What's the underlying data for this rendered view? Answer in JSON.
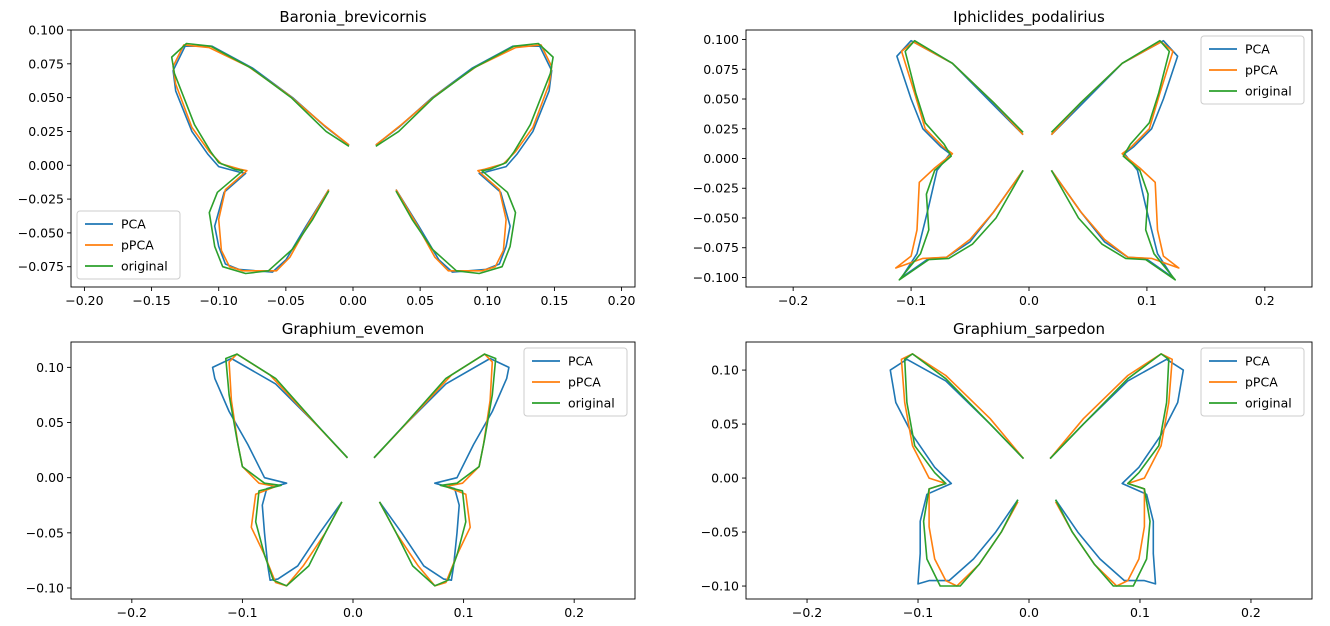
{
  "chart_data": [
    {
      "type": "line",
      "title": "Baronia_brevicornis",
      "xlim": [
        -0.21,
        0.21
      ],
      "ylim": [
        -0.09,
        0.1
      ],
      "xticks": [
        -0.2,
        -0.15,
        -0.1,
        -0.05,
        0.0,
        0.05,
        0.1,
        0.15,
        0.2
      ],
      "xtick_labels": [
        "−0.20",
        "−0.15",
        "−0.10",
        "−0.05",
        "0.00",
        "0.05",
        "0.10",
        "0.15",
        "0.20"
      ],
      "yticks": [
        -0.075,
        -0.05,
        -0.025,
        0.0,
        0.025,
        0.05,
        0.075,
        0.1
      ],
      "ytick_labels": [
        "−0.075",
        "−0.050",
        "−0.025",
        "0.000",
        "0.025",
        "0.050",
        "0.075",
        "0.100"
      ],
      "legend_position": "lower-left",
      "series": [
        {
          "name": "PCA",
          "color": "#1f77b4",
          "x": [
            -0.003,
            -0.02,
            -0.045,
            -0.075,
            -0.105,
            -0.125,
            -0.134,
            -0.132,
            -0.12,
            -0.108,
            -0.1,
            -0.085,
            -0.08,
            -0.096,
            -0.103,
            -0.1,
            -0.095,
            -0.085,
            -0.06,
            -0.05,
            -0.035,
            -0.018
          ],
          "y": [
            0.015,
            0.028,
            0.05,
            0.072,
            0.088,
            0.088,
            0.07,
            0.055,
            0.025,
            0.008,
            -0.001,
            -0.005,
            -0.006,
            -0.02,
            -0.045,
            -0.06,
            -0.073,
            -0.077,
            -0.079,
            -0.07,
            -0.045,
            -0.018
          ]
        },
        {
          "name": "pPCA",
          "color": "#ff7f0e",
          "x": [
            -0.003,
            -0.022,
            -0.048,
            -0.078,
            -0.107,
            -0.126,
            -0.134,
            -0.132,
            -0.12,
            -0.107,
            -0.098,
            -0.084,
            -0.079,
            -0.095,
            -0.1,
            -0.098,
            -0.092,
            -0.082,
            -0.057,
            -0.047,
            -0.033,
            -0.018
          ],
          "y": [
            0.015,
            0.03,
            0.052,
            0.073,
            0.087,
            0.089,
            0.073,
            0.06,
            0.028,
            0.01,
            0.001,
            -0.003,
            -0.004,
            -0.018,
            -0.04,
            -0.063,
            -0.075,
            -0.078,
            -0.078,
            -0.068,
            -0.043,
            -0.018
          ]
        },
        {
          "name": "original",
          "color": "#2ca02c",
          "x": [
            -0.003,
            -0.02,
            -0.046,
            -0.076,
            -0.106,
            -0.124,
            -0.135,
            -0.133,
            -0.118,
            -0.106,
            -0.1,
            -0.088,
            -0.082,
            -0.101,
            -0.107,
            -0.103,
            -0.097,
            -0.08,
            -0.063,
            -0.045,
            -0.03,
            -0.018
          ],
          "y": [
            0.014,
            0.025,
            0.05,
            0.072,
            0.088,
            0.09,
            0.08,
            0.068,
            0.03,
            0.01,
            0.002,
            -0.003,
            -0.004,
            -0.02,
            -0.035,
            -0.06,
            -0.075,
            -0.08,
            -0.078,
            -0.062,
            -0.04,
            -0.019
          ]
        }
      ]
    },
    {
      "type": "line",
      "title": "Iphiclides_podalirius",
      "xlim": [
        -0.24,
        0.24
      ],
      "ylim": [
        -0.108,
        0.108
      ],
      "xticks": [
        -0.2,
        -0.1,
        0.0,
        0.1,
        0.2
      ],
      "xtick_labels": [
        "−0.2",
        "−0.1",
        "0.0",
        "0.1",
        "0.2"
      ],
      "yticks": [
        -0.1,
        -0.075,
        -0.05,
        -0.025,
        0.0,
        0.025,
        0.05,
        0.075,
        0.1
      ],
      "ytick_labels": [
        "−0.100",
        "−0.075",
        "−0.050",
        "−0.025",
        "0.000",
        "0.025",
        "0.050",
        "0.075",
        "0.100"
      ],
      "legend_position": "upper-right",
      "series": [
        {
          "name": "PCA",
          "color": "#1f77b4",
          "x": [
            -0.005,
            -0.03,
            -0.065,
            -0.1,
            -0.112,
            -0.1,
            -0.09,
            -0.075,
            -0.067,
            -0.078,
            -0.085,
            -0.09,
            -0.095,
            -0.108,
            -0.085,
            -0.07,
            -0.05,
            -0.03,
            -0.005
          ],
          "y": [
            0.02,
            0.045,
            0.08,
            0.099,
            0.086,
            0.05,
            0.025,
            0.01,
            0.004,
            -0.01,
            -0.04,
            -0.06,
            -0.08,
            -0.1,
            -0.084,
            -0.083,
            -0.07,
            -0.045,
            -0.01
          ]
        },
        {
          "name": "pPCA",
          "color": "#ff7f0e",
          "x": [
            -0.005,
            -0.03,
            -0.065,
            -0.098,
            -0.108,
            -0.097,
            -0.088,
            -0.073,
            -0.065,
            -0.08,
            -0.093,
            -0.095,
            -0.1,
            -0.113,
            -0.09,
            -0.07,
            -0.05,
            -0.03,
            -0.005
          ],
          "y": [
            0.02,
            0.047,
            0.08,
            0.098,
            0.09,
            0.055,
            0.025,
            0.01,
            0.004,
            -0.008,
            -0.02,
            -0.06,
            -0.082,
            -0.092,
            -0.084,
            -0.083,
            -0.068,
            -0.045,
            -0.01
          ]
        },
        {
          "name": "original",
          "color": "#2ca02c",
          "x": [
            -0.005,
            -0.03,
            -0.065,
            -0.097,
            -0.105,
            -0.096,
            -0.088,
            -0.072,
            -0.066,
            -0.08,
            -0.087,
            -0.085,
            -0.092,
            -0.11,
            -0.085,
            -0.068,
            -0.048,
            -0.028,
            -0.005
          ],
          "y": [
            0.022,
            0.047,
            0.08,
            0.099,
            0.09,
            0.055,
            0.03,
            0.012,
            0.002,
            -0.01,
            -0.03,
            -0.06,
            -0.08,
            -0.102,
            -0.085,
            -0.084,
            -0.072,
            -0.05,
            -0.01
          ]
        }
      ]
    },
    {
      "type": "line",
      "title": "Graphium_evemon",
      "xlim": [
        -0.255,
        0.255
      ],
      "ylim": [
        -0.11,
        0.123
      ],
      "xticks": [
        -0.2,
        -0.1,
        0.0,
        0.1,
        0.2
      ],
      "xtick_labels": [
        "−0.2",
        "−0.1",
        "0.0",
        "0.1",
        "0.2"
      ],
      "yticks": [
        -0.1,
        -0.05,
        0.0,
        0.05,
        0.1
      ],
      "ytick_labels": [
        "−0.10",
        "−0.05",
        "0.00",
        "0.05",
        "0.10"
      ],
      "legend_position": "upper-right",
      "series": [
        {
          "name": "PCA",
          "color": "#1f77b4",
          "x": [
            -0.005,
            -0.03,
            -0.07,
            -0.11,
            -0.127,
            -0.125,
            -0.112,
            -0.095,
            -0.08,
            -0.06,
            -0.078,
            -0.082,
            -0.08,
            -0.077,
            -0.075,
            -0.068,
            -0.05,
            -0.03,
            -0.01
          ],
          "y": [
            0.018,
            0.045,
            0.085,
            0.108,
            0.1,
            0.09,
            0.06,
            0.03,
            0.0,
            -0.005,
            -0.01,
            -0.025,
            -0.05,
            -0.08,
            -0.093,
            -0.092,
            -0.08,
            -0.05,
            -0.022
          ]
        },
        {
          "name": "pPCA",
          "color": "#ff7f0e",
          "x": [
            -0.005,
            -0.035,
            -0.075,
            -0.105,
            -0.112,
            -0.11,
            -0.104,
            -0.1,
            -0.085,
            -0.07,
            -0.088,
            -0.092,
            -0.08,
            -0.07,
            -0.06,
            -0.045,
            -0.025,
            -0.01
          ],
          "y": [
            0.018,
            0.05,
            0.093,
            0.112,
            0.105,
            0.07,
            0.03,
            0.01,
            -0.005,
            -0.008,
            -0.015,
            -0.045,
            -0.07,
            -0.095,
            -0.098,
            -0.08,
            -0.05,
            -0.022
          ]
        },
        {
          "name": "original",
          "color": "#2ca02c",
          "x": [
            -0.005,
            -0.03,
            -0.07,
            -0.105,
            -0.115,
            -0.112,
            -0.105,
            -0.1,
            -0.08,
            -0.065,
            -0.085,
            -0.088,
            -0.08,
            -0.072,
            -0.06,
            -0.04,
            -0.025,
            -0.01
          ],
          "y": [
            0.018,
            0.045,
            0.09,
            0.112,
            0.108,
            0.075,
            0.035,
            0.01,
            -0.005,
            -0.007,
            -0.012,
            -0.04,
            -0.07,
            -0.093,
            -0.098,
            -0.08,
            -0.05,
            -0.022
          ]
        }
      ]
    },
    {
      "type": "line",
      "title": "Graphium_sarpedon",
      "xlim": [
        -0.255,
        0.255
      ],
      "ylim": [
        -0.112,
        0.126
      ],
      "xticks": [
        -0.2,
        -0.1,
        0.0,
        0.1,
        0.2
      ],
      "xtick_labels": [
        "−0.2",
        "−0.1",
        "0.0",
        "0.1",
        "0.2"
      ],
      "yticks": [
        -0.1,
        -0.05,
        0.0,
        0.05,
        0.1
      ],
      "ytick_labels": [
        "−0.10",
        "−0.05",
        "0.00",
        "0.05",
        "0.10"
      ],
      "legend_position": "upper-right",
      "series": [
        {
          "name": "PCA",
          "color": "#1f77b4",
          "x": [
            -0.005,
            -0.035,
            -0.075,
            -0.11,
            -0.125,
            -0.12,
            -0.105,
            -0.085,
            -0.07,
            -0.092,
            -0.098,
            -0.098,
            -0.1,
            -0.09,
            -0.072,
            -0.05,
            -0.03,
            -0.01
          ],
          "y": [
            0.018,
            0.05,
            0.09,
            0.11,
            0.1,
            0.07,
            0.04,
            0.01,
            -0.005,
            -0.015,
            -0.04,
            -0.07,
            -0.098,
            -0.095,
            -0.095,
            -0.075,
            -0.05,
            -0.02
          ]
        },
        {
          "name": "pPCA",
          "color": "#ff7f0e",
          "x": [
            -0.005,
            -0.035,
            -0.075,
            -0.105,
            -0.115,
            -0.112,
            -0.105,
            -0.09,
            -0.075,
            -0.09,
            -0.09,
            -0.085,
            -0.075,
            -0.065,
            -0.045,
            -0.025,
            -0.01
          ],
          "y": [
            0.018,
            0.055,
            0.095,
            0.115,
            0.11,
            0.07,
            0.03,
            0.0,
            -0.005,
            -0.01,
            -0.045,
            -0.075,
            -0.095,
            -0.1,
            -0.08,
            -0.05,
            -0.022
          ]
        },
        {
          "name": "original",
          "color": "#2ca02c",
          "x": [
            -0.005,
            -0.035,
            -0.075,
            -0.105,
            -0.112,
            -0.11,
            -0.103,
            -0.085,
            -0.075,
            -0.09,
            -0.095,
            -0.092,
            -0.08,
            -0.062,
            -0.045,
            -0.025,
            -0.01
          ],
          "y": [
            0.018,
            0.05,
            0.092,
            0.115,
            0.11,
            0.07,
            0.03,
            0.005,
            -0.005,
            -0.01,
            -0.04,
            -0.075,
            -0.1,
            -0.1,
            -0.08,
            -0.05,
            -0.02
          ]
        }
      ]
    }
  ]
}
